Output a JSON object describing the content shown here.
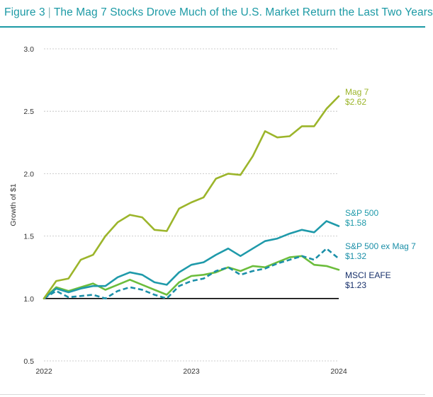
{
  "figure": {
    "label": "Figure 3",
    "separator": "|",
    "title": "The Mag 7 Stocks Drove Much of the U.S. Market Return the Last Two Years"
  },
  "colors": {
    "accent": "#1c9aa5",
    "mag7": "#9cb52b",
    "sp500": "#1f9aaa",
    "sp500exmag7": "#1b8fa8",
    "msci": "#6cbd3c",
    "msci_label": "#17306b",
    "baseline": "#000000",
    "grid": "#bdbdbd"
  },
  "chart_data": {
    "type": "line",
    "title": "The Mag 7 Stocks Drove Much of the U.S. Market Return the Last Two Years",
    "xlabel": "",
    "ylabel": "Growth of $1",
    "xlim": [
      0,
      24
    ],
    "ylim": [
      0.5,
      3.0
    ],
    "yticks": [
      "0.5",
      "1.0",
      "1.5",
      "2.0",
      "2.5",
      "3.0"
    ],
    "ytick_values": [
      0.5,
      1.0,
      1.5,
      2.0,
      2.5,
      3.0
    ],
    "xticks": [
      "2022",
      "2023",
      "2024"
    ],
    "xtick_values": [
      0,
      12,
      24
    ],
    "grid": true,
    "baseline": 1.0,
    "x": [
      0,
      1,
      2,
      3,
      4,
      5,
      6,
      7,
      8,
      9,
      10,
      11,
      12,
      13,
      14,
      15,
      16,
      17,
      18,
      19,
      20,
      21,
      22,
      23,
      24
    ],
    "series": [
      {
        "name": "Mag 7",
        "label_name": "Mag 7",
        "label_value": "$2.62",
        "color_key": "mag7",
        "dashed": false,
        "values": [
          1.0,
          1.14,
          1.16,
          1.31,
          1.35,
          1.5,
          1.61,
          1.67,
          1.65,
          1.55,
          1.54,
          1.72,
          1.77,
          1.81,
          1.96,
          2.0,
          1.99,
          2.14,
          2.34,
          2.29,
          2.3,
          2.38,
          2.38,
          2.52,
          2.62
        ]
      },
      {
        "name": "S&P 500",
        "label_name": "S&P 500",
        "label_value": "$1.58",
        "color_key": "sp500",
        "dashed": false,
        "values": [
          1.0,
          1.08,
          1.05,
          1.08,
          1.1,
          1.1,
          1.17,
          1.21,
          1.19,
          1.13,
          1.11,
          1.21,
          1.27,
          1.29,
          1.35,
          1.4,
          1.34,
          1.4,
          1.46,
          1.48,
          1.52,
          1.55,
          1.53,
          1.62,
          1.58
        ]
      },
      {
        "name": "S&P 500 ex Mag 7",
        "label_name": "S&P 500 ex Mag 7",
        "label_value": "$1.32",
        "color_key": "sp500exmag7",
        "dashed": true,
        "values": [
          1.0,
          1.06,
          1.01,
          1.02,
          1.03,
          1.0,
          1.06,
          1.09,
          1.07,
          1.03,
          1.0,
          1.1,
          1.14,
          1.16,
          1.22,
          1.25,
          1.19,
          1.22,
          1.24,
          1.28,
          1.31,
          1.34,
          1.31,
          1.4,
          1.32
        ]
      },
      {
        "name": "MSCI EAFE",
        "label_name": "MSCI EAFE",
        "label_value": "$1.23",
        "color_key": "msci",
        "label_color_key": "msci_label",
        "dashed": false,
        "values": [
          1.0,
          1.09,
          1.06,
          1.09,
          1.12,
          1.07,
          1.11,
          1.15,
          1.11,
          1.07,
          1.03,
          1.13,
          1.18,
          1.19,
          1.21,
          1.25,
          1.22,
          1.26,
          1.25,
          1.29,
          1.33,
          1.34,
          1.27,
          1.26,
          1.23
        ]
      }
    ]
  }
}
